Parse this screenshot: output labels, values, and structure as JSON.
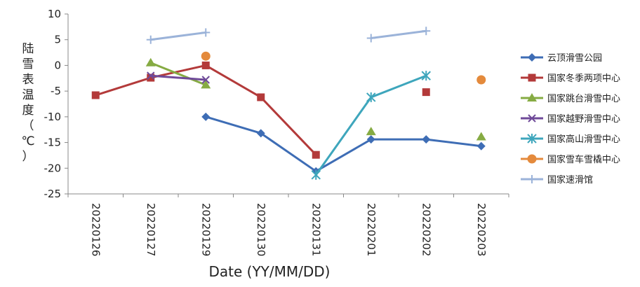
{
  "chart_data": {
    "type": "line",
    "xlabel": "Date (YY/MM/DD)",
    "ylabel": "陆雪表温度（℃）",
    "ylim": [
      -25,
      10
    ],
    "yticks": [
      10,
      5,
      0,
      -5,
      -10,
      -15,
      -20,
      -25
    ],
    "grid": false,
    "legend_position": "right",
    "categories": [
      "20220126",
      "20220127",
      "20220129",
      "20220130",
      "20220131",
      "20220201",
      "20220202",
      "20220203"
    ],
    "series": [
      {
        "name": "云顶滑雪公园",
        "color": "#3e6db5",
        "marker": "diamond",
        "values": [
          null,
          null,
          -10,
          -13.2,
          -20.6,
          -14.4,
          -14.4,
          -15.7
        ]
      },
      {
        "name": "国家冬季两项中心",
        "color": "#b33a3a",
        "marker": "square",
        "values": [
          -5.8,
          -2.4,
          0,
          -6.2,
          -17.4,
          null,
          -5.2,
          null
        ]
      },
      {
        "name": "国家跳台滑雪中心",
        "color": "#86ab43",
        "marker": "triangle",
        "values": [
          null,
          0.5,
          -3.8,
          null,
          null,
          -12.9,
          null,
          -13.9
        ]
      },
      {
        "name": "国家越野滑雪中心",
        "color": "#6f4a99",
        "marker": "x",
        "values": [
          null,
          -2.0,
          -2.8,
          null,
          null,
          null,
          null,
          null
        ]
      },
      {
        "name": "国家高山滑雪中心",
        "color": "#3ea6bc",
        "marker": "star",
        "values": [
          null,
          null,
          null,
          null,
          -21.3,
          -6.2,
          -2.0,
          null
        ]
      },
      {
        "name": "国家雪车雪橇中心",
        "color": "#e48a3c",
        "marker": "circle",
        "values": [
          null,
          null,
          1.8,
          null,
          null,
          null,
          null,
          -2.8
        ]
      },
      {
        "name": "国家速滑馆",
        "color": "#9bb3d9",
        "marker": "plus",
        "values": [
          null,
          5.0,
          6.4,
          null,
          null,
          5.3,
          6.7,
          null
        ]
      }
    ]
  }
}
